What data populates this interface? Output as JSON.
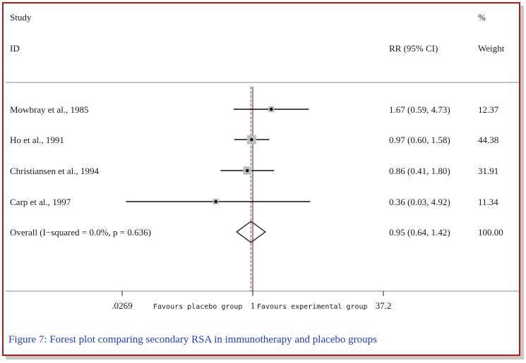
{
  "chart_data": {
    "type": "forest",
    "headers": {
      "study": "Study",
      "id": "ID",
      "rr": "RR (95% CI)",
      "weight_pct": "%",
      "weight": "Weight"
    },
    "studies": [
      {
        "label": "Mowbray et al., 1985",
        "rr": 1.67,
        "lo": 0.59,
        "hi": 4.73,
        "ci_text": "1.67 (0.59, 4.73)",
        "weight": "12.37"
      },
      {
        "label": "Ho et al., 1991",
        "rr": 0.97,
        "lo": 0.6,
        "hi": 1.58,
        "ci_text": "0.97 (0.60, 1.58)",
        "weight": "44.38"
      },
      {
        "label": "Christiansen et al., 1994",
        "rr": 0.86,
        "lo": 0.41,
        "hi": 1.8,
        "ci_text": "0.86 (0.41, 1.80)",
        "weight": "31.91"
      },
      {
        "label": "Carp et al., 1997",
        "rr": 0.36,
        "lo": 0.03,
        "hi": 4.92,
        "ci_text": "0.36 (0.03, 4.92)",
        "weight": "11.34"
      }
    ],
    "overall": {
      "label": "Overall  (I−squared = 0.0%, p = 0.636)",
      "rr": 0.95,
      "lo": 0.64,
      "hi": 1.42,
      "ci_text": "0.95 (0.64, 1.42)",
      "weight": "100.00"
    },
    "x_axis": {
      "scale": "log",
      "min": 0.0269,
      "max": 37.2,
      "ticks": [
        {
          "value": 0.0269,
          "label": ".0269"
        },
        {
          "value": 1,
          "label": "1"
        },
        {
          "value": 37.2,
          "label": "37.2"
        }
      ],
      "left_label": "Favours placebo group",
      "right_label": "Favours experimental group"
    },
    "null_line": 1
  },
  "caption": "Figure 7: Forest plot comparing secondary RSA in immunotherapy and placebo groups"
}
